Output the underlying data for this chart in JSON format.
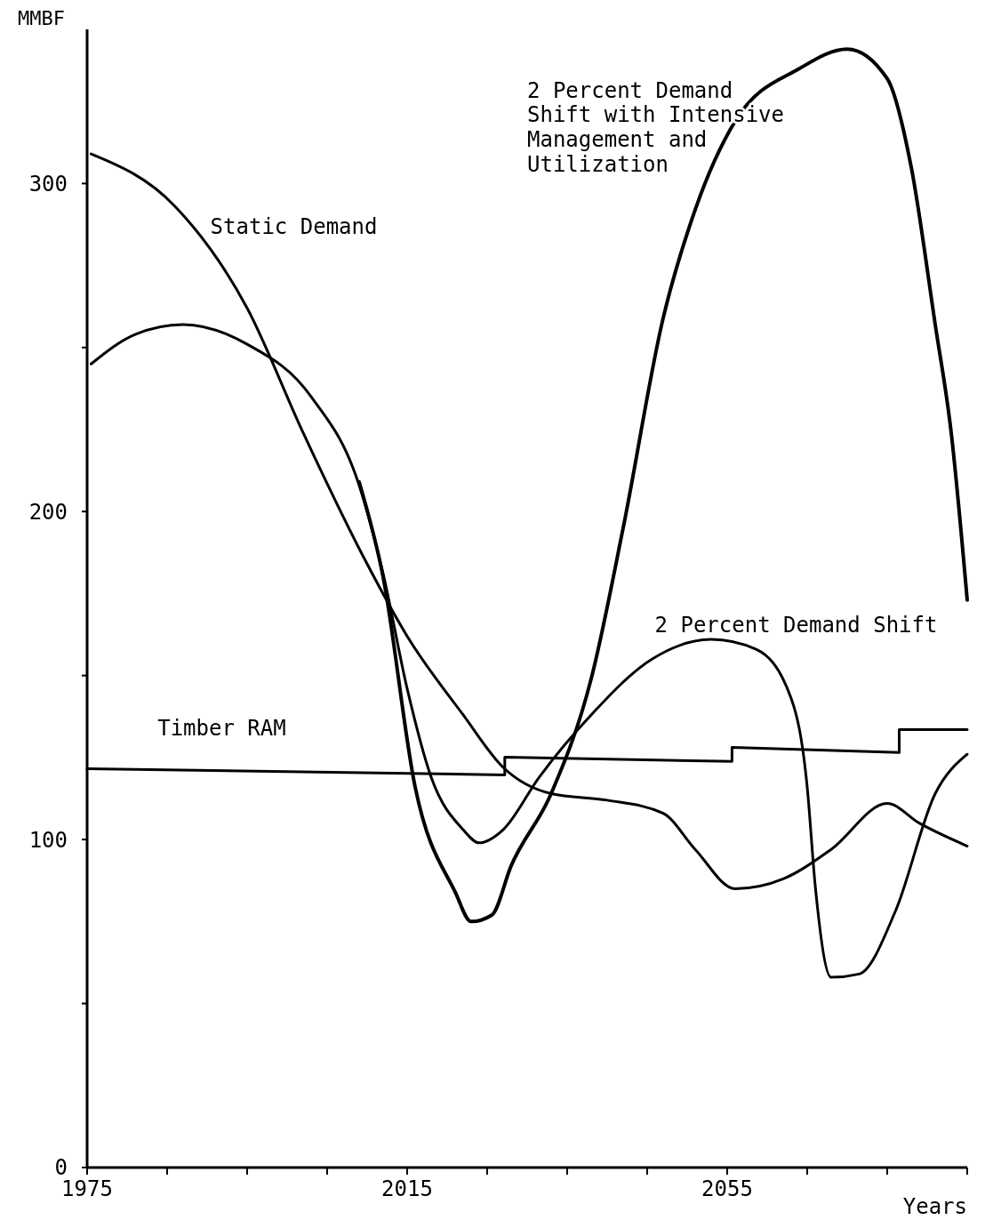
{
  "chart_data": {
    "type": "line",
    "ylabel": "MMBF",
    "xlabel": "Years",
    "xlim": [
      1975,
      2085
    ],
    "ylim": [
      0,
      347
    ],
    "xticks": [
      1975,
      {
        "value": 1985,
        "label": null
      },
      {
        "value": 1995,
        "label": null
      },
      {
        "value": 2005,
        "label": null
      },
      2015,
      {
        "value": 2025,
        "label": null
      },
      {
        "value": 2035,
        "label": null
      },
      {
        "value": 2045,
        "label": null
      },
      2055,
      {
        "value": 2065,
        "label": null
      },
      {
        "value": 2075,
        "label": null
      },
      {
        "value": 2085,
        "label": null
      }
    ],
    "yticks": [
      0,
      {
        "value": 50,
        "label": null
      },
      100,
      {
        "value": 150,
        "label": null
      },
      200,
      {
        "value": 250,
        "label": null
      },
      300
    ],
    "grid": false,
    "marker": "none",
    "line_style": "solid",
    "series": [
      {
        "name": "Static Demand",
        "color": "#000000",
        "x": [
          1975.5,
          1986,
          1995,
          2002,
          2010,
          2015,
          2022,
          2027,
          2033,
          2040,
          2047,
          2051,
          2056,
          2062,
          2068,
          2075,
          2079,
          2085
        ],
        "values": [
          309,
          293,
          262,
          224,
          184,
          162,
          138,
          122,
          114,
          112,
          108,
          97,
          85,
          88,
          97,
          111,
          105,
          98
        ]
      },
      {
        "name": "2 Percent Demand Shift",
        "color": "#000000",
        "x": [
          1975.5,
          1981,
          1987,
          1995,
          2003,
          2009,
          2012,
          2015,
          2018,
          2022,
          2024,
          2027,
          2031.5,
          2038,
          2045.6,
          2053,
          2058.6,
          2063,
          2065,
          2066,
          2068,
          2071.5,
          2076,
          2081,
          2085
        ],
        "values": [
          245,
          254,
          257,
          251,
          235,
          208,
          181,
          146,
          119,
          103,
          99,
          103,
          119,
          138,
          155,
          161,
          158,
          143,
          116,
          86,
          58,
          59,
          78,
          114,
          126
        ]
      },
      {
        "name": "2 Percent Demand Shift with Intensive Management and Utilization",
        "color": "#000000",
        "x": [
          2009,
          2012,
          2016,
          2021,
          2023,
          2025.6,
          2028,
          2033,
          2038,
          2042,
          2047,
          2051,
          2056,
          2064,
          2070,
          2075,
          2078,
          2081,
          2083,
          2085
        ],
        "values": [
          209,
          180,
          116,
          84,
          75,
          77,
          92,
          114,
          149,
          195,
          259,
          292,
          319,
          335,
          341,
          332,
          305,
          257,
          224,
          173
        ]
      },
      {
        "name": "Timber RAM",
        "color": "#000000",
        "x": [
          1975,
          2027.2,
          2027.2,
          2055.6,
          2055.6,
          2076.5,
          2076.5,
          2085
        ],
        "values": [
          121.6,
          119.7,
          125.1,
          123.8,
          128.1,
          126.5,
          133.5,
          133.5
        ]
      }
    ]
  }
}
